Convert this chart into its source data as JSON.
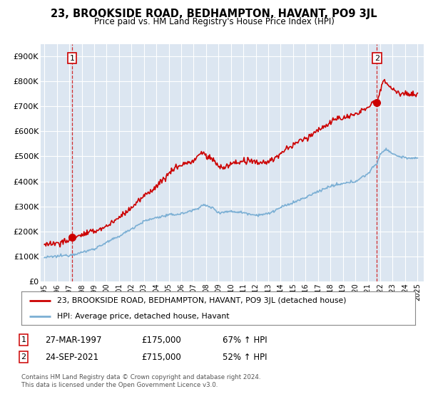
{
  "title": "23, BROOKSIDE ROAD, BEDHAMPTON, HAVANT, PO9 3JL",
  "subtitle": "Price paid vs. HM Land Registry's House Price Index (HPI)",
  "red_line_color": "#cc0000",
  "blue_line_color": "#7bafd4",
  "plot_bg_color": "#dce6f1",
  "grid_color": "#ffffff",
  "annotation_box_color": "#cc0000",
  "sale1": {
    "date_num": 1997.23,
    "price": 175000,
    "label": "1",
    "date_str": "27-MAR-1997",
    "hpi_pct": "67% ↑ HPI"
  },
  "sale2": {
    "date_num": 2021.73,
    "price": 715000,
    "label": "2",
    "date_str": "24-SEP-2021",
    "hpi_pct": "52% ↑ HPI"
  },
  "xmin": 1994.7,
  "xmax": 2025.5,
  "ymin": 0,
  "ymax": 950000,
  "ylabel_ticks": [
    0,
    100000,
    200000,
    300000,
    400000,
    500000,
    600000,
    700000,
    800000,
    900000
  ],
  "ylabel_labels": [
    "£0",
    "£100K",
    "£200K",
    "£300K",
    "£400K",
    "£500K",
    "£600K",
    "£700K",
    "£800K",
    "£900K"
  ],
  "xtick_years": [
    1995,
    1996,
    1997,
    1998,
    1999,
    2000,
    2001,
    2002,
    2003,
    2004,
    2005,
    2006,
    2007,
    2008,
    2009,
    2010,
    2011,
    2012,
    2013,
    2014,
    2015,
    2016,
    2017,
    2018,
    2019,
    2020,
    2021,
    2022,
    2023,
    2024,
    2025
  ],
  "legend_red_label": "23, BROOKSIDE ROAD, BEDHAMPTON, HAVANT, PO9 3JL (detached house)",
  "legend_blue_label": "HPI: Average price, detached house, Havant",
  "footer": "Contains HM Land Registry data © Crown copyright and database right 2024.\nThis data is licensed under the Open Government Licence v3.0."
}
